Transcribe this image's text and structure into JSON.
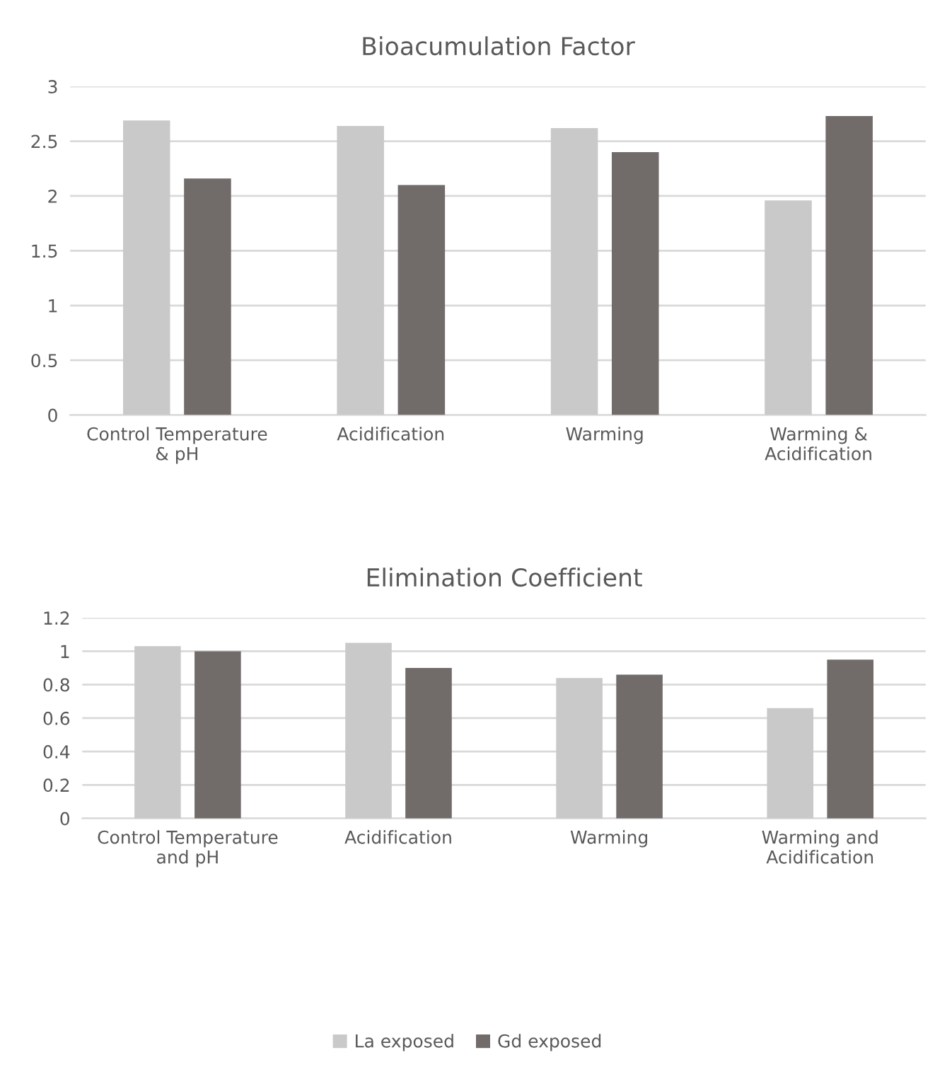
{
  "chart_data": [
    {
      "type": "bar",
      "title": "Bioacumulation Factor",
      "categories": [
        "Control Temperature\n& pH",
        "Acidification",
        "Warming",
        "Warming &\nAcidification"
      ],
      "series": [
        {
          "color": "#c9c9c9",
          "values": [
            2.69,
            2.64,
            2.62,
            1.96
          ]
        },
        {
          "color": "#716b6a",
          "values": [
            2.16,
            2.1,
            2.4,
            2.73
          ]
        }
      ],
      "ylim": [
        0,
        3
      ],
      "yticks": [
        0,
        {
          "value": 0.5,
          "label": "0.5"
        },
        1,
        {
          "value": 1.5,
          "label": "1.5"
        },
        2,
        {
          "value": 2.5,
          "label": "2.5"
        },
        3
      ],
      "grid": "y"
    },
    {
      "type": "bar",
      "title": "Elimination Coefficient",
      "categories": [
        "Control Temperature\nand pH",
        "Acidification",
        "Warming",
        "Warming and\nAcidification"
      ],
      "series": [
        {
          "name": "La exposed",
          "color": "#c9c9c9",
          "values": [
            1.03,
            1.05,
            0.84,
            0.66
          ]
        },
        {
          "name": "Gd exposed",
          "color": "#716b6a",
          "values": [
            1.0,
            0.9,
            0.86,
            0.95
          ]
        }
      ],
      "ylim": [
        0,
        1.2
      ],
      "yticks": [
        0,
        {
          "value": 0.2,
          "label": "0.2"
        },
        {
          "value": 0.4,
          "label": "0.4"
        },
        {
          "value": 0.6,
          "label": "0.6"
        },
        {
          "value": 0.8,
          "label": "0.8"
        },
        1,
        {
          "value": 1.2,
          "label": "1.2"
        }
      ],
      "grid": "y",
      "legend": "bottom"
    }
  ]
}
